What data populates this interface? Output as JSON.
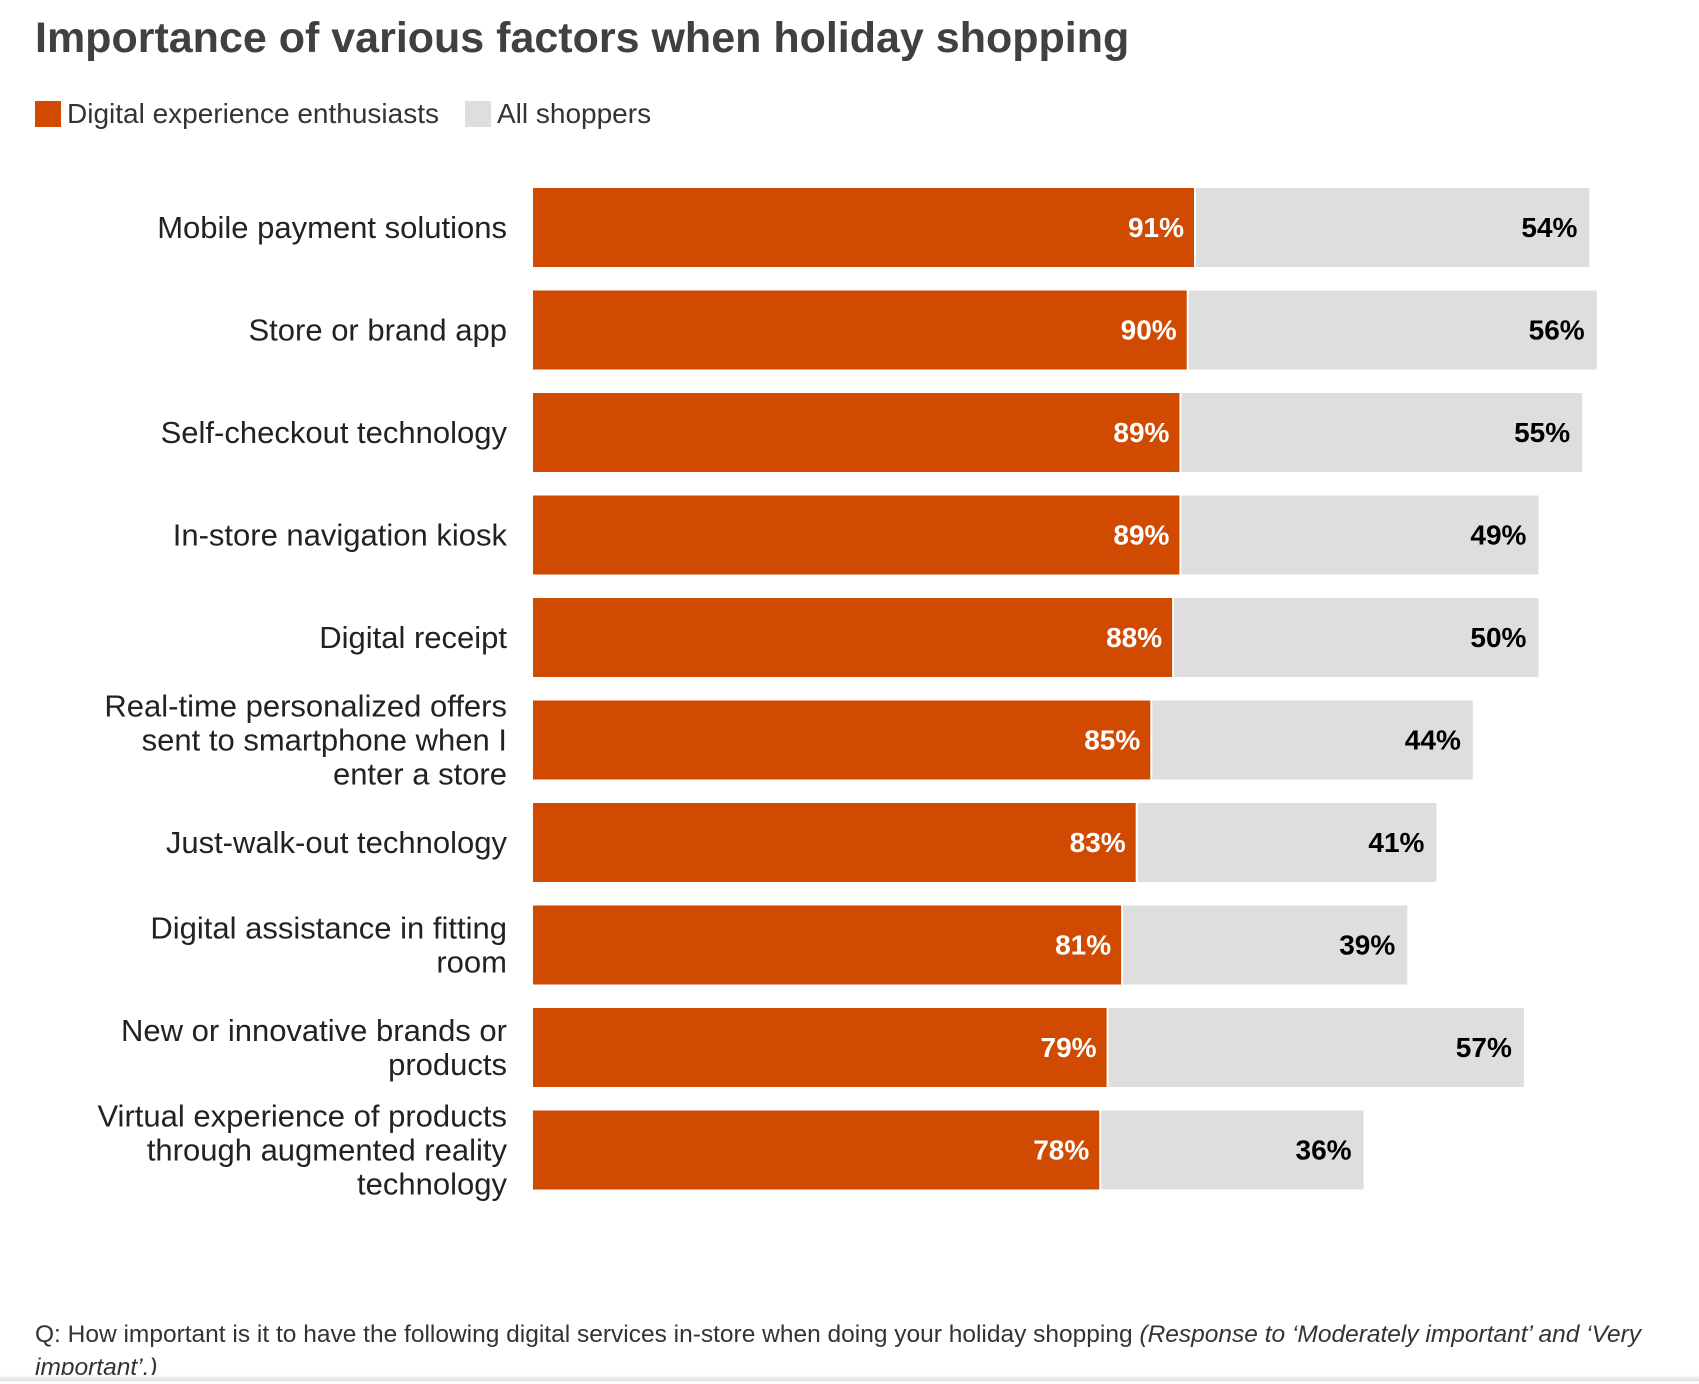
{
  "title": "Importance of various factors when holiday shopping",
  "legend": [
    {
      "label": "Digital experience enthusiasts",
      "color": "#d04a02"
    },
    {
      "label": "All shoppers",
      "color": "#dedede"
    }
  ],
  "chart_data": {
    "type": "bar",
    "orientation": "horizontal",
    "stacked": true,
    "title": "Importance of various factors when holiday shopping",
    "categories": [
      "Mobile payment solutions",
      "Store or brand app",
      "Self-checkout technology",
      "In-store navigation kiosk",
      "Digital receipt",
      "Real-time personalized offers sent to smartphone when I enter a store",
      "Just-walk-out technology",
      "Digital assistance in fitting room",
      "New or innovative brands or products",
      "Virtual experience of products through augmented reality technology"
    ],
    "category_lines": [
      [
        "Mobile payment solutions"
      ],
      [
        "Store or brand app"
      ],
      [
        "Self-checkout technology"
      ],
      [
        "In-store navigation kiosk"
      ],
      [
        "Digital receipt"
      ],
      [
        "Real-time personalized offers",
        "sent to smartphone when I",
        "enter a store"
      ],
      [
        "Just-walk-out technology"
      ],
      [
        "Digital assistance in fitting",
        "room"
      ],
      [
        "New or innovative brands or",
        "products"
      ],
      [
        "Virtual experience of products",
        "through augmented reality",
        "technology"
      ]
    ],
    "series": [
      {
        "name": "Digital experience enthusiasts",
        "color": "#d04a02",
        "label_color": "#ffffff",
        "values": [
          91,
          90,
          89,
          89,
          88,
          85,
          83,
          81,
          79,
          78
        ],
        "labels": [
          "91%",
          "90%",
          "89%",
          "89%",
          "88%",
          "85%",
          "83%",
          "81%",
          "79%",
          "78%"
        ]
      },
      {
        "name": "All shoppers",
        "color": "#dedede",
        "label_color": "#000000",
        "values": [
          54,
          56,
          55,
          49,
          50,
          44,
          41,
          39,
          57,
          36
        ],
        "labels": [
          "54%",
          "56%",
          "55%",
          "49%",
          "50%",
          "44%",
          "41%",
          "39%",
          "57%",
          "36%"
        ]
      }
    ],
    "xlim": [
      0,
      147
    ],
    "xlabel": "",
    "ylabel": "",
    "grid": false,
    "legend_position": "top-left"
  },
  "footnote": {
    "question": "Q: How important is it to have the following digital services in-store when doing your holiday shopping ",
    "response_note": "(Response to ‘Moderately important’ and ‘Very important’.)"
  }
}
